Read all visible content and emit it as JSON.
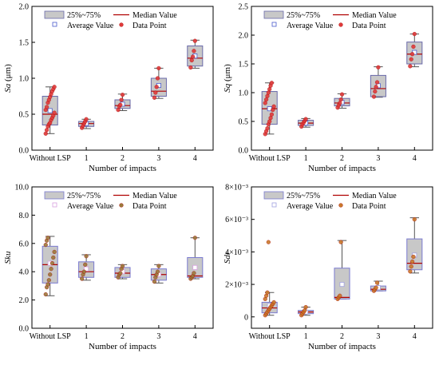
{
  "chart_data": [
    {
      "type": "box",
      "ylabel_symbol": "Sa",
      "ylabel_unit": " (μm)",
      "xlabel": "Number of impacts",
      "categories": [
        "Without LSP",
        "1",
        "2",
        "3",
        "4"
      ],
      "ylim": [
        0,
        2.0
      ],
      "yticks": [
        0.0,
        0.5,
        1.0,
        1.5,
        2.0
      ],
      "yticklabels": [
        "0.0",
        "0.5",
        "1.0",
        "1.5",
        "2.0"
      ],
      "box_color": "#c8c8c8",
      "box_edge_color": "#6a6aaa",
      "point_color": "#e03a3a",
      "average_color": "#4a5acc",
      "legend": {
        "placement": "top",
        "box_label": "25%~75%",
        "median_label": "Median Value",
        "average_label": "Average Value",
        "point_label": "Data Point"
      },
      "boxes": [
        {
          "q1": 0.35,
          "median": 0.5,
          "q3": 0.75,
          "whisker_low": 0.23,
          "whisker_high": 0.88,
          "mean": 0.55,
          "points": [
            0.23,
            0.28,
            0.33,
            0.36,
            0.38,
            0.42,
            0.45,
            0.48,
            0.52,
            0.56,
            0.6,
            0.66,
            0.7,
            0.74,
            0.78,
            0.82,
            0.85,
            0.88
          ]
        },
        {
          "q1": 0.33,
          "median": 0.37,
          "q3": 0.4,
          "whisker_low": 0.3,
          "whisker_high": 0.43,
          "mean": 0.37,
          "points": [
            0.31,
            0.34,
            0.37,
            0.4,
            0.43
          ]
        },
        {
          "q1": 0.58,
          "median": 0.62,
          "q3": 0.7,
          "whisker_low": 0.55,
          "whisker_high": 0.78,
          "mean": 0.64,
          "points": [
            0.56,
            0.61,
            0.63,
            0.7,
            0.77
          ]
        },
        {
          "q1": 0.75,
          "median": 0.82,
          "q3": 1.0,
          "whisker_low": 0.72,
          "whisker_high": 1.14,
          "mean": 0.9,
          "points": [
            0.73,
            0.8,
            0.88,
            1.0,
            1.14
          ]
        },
        {
          "q1": 1.17,
          "median": 1.28,
          "q3": 1.45,
          "whisker_low": 1.14,
          "whisker_high": 1.53,
          "mean": 1.31,
          "points": [
            1.15,
            1.25,
            1.3,
            1.38,
            1.52
          ]
        }
      ]
    },
    {
      "type": "box",
      "ylabel_symbol": "Sq",
      "ylabel_unit": " (μm)",
      "xlabel": "Number of impacts",
      "categories": [
        "Without LSP",
        "1",
        "2",
        "3",
        "4"
      ],
      "ylim": [
        0,
        2.5
      ],
      "yticks": [
        0.0,
        0.5,
        1.0,
        1.5,
        2.0,
        2.5
      ],
      "yticklabels": [
        "0.0",
        "0.5",
        "1.0",
        "1.5",
        "2.0",
        "2.5"
      ],
      "box_color": "#c8c8c8",
      "box_edge_color": "#6a6aaa",
      "point_color": "#e03a3a",
      "average_color": "#4a5acc",
      "legend": {
        "placement": "top",
        "box_label": "25%~75%",
        "median_label": "Median Value",
        "average_label": "Average Value",
        "point_label": "Data Point"
      },
      "boxes": [
        {
          "q1": 0.45,
          "median": 0.72,
          "q3": 1.02,
          "whisker_low": 0.28,
          "whisker_high": 1.17,
          "mean": 0.72,
          "points": [
            0.28,
            0.33,
            0.38,
            0.45,
            0.5,
            0.56,
            0.62,
            0.7,
            0.76,
            0.82,
            0.88,
            0.94,
            1.0,
            1.06,
            1.12,
            1.17
          ]
        },
        {
          "q1": 0.43,
          "median": 0.47,
          "q3": 0.52,
          "whisker_low": 0.4,
          "whisker_high": 0.55,
          "mean": 0.47,
          "points": [
            0.41,
            0.45,
            0.48,
            0.51,
            0.54
          ]
        },
        {
          "q1": 0.77,
          "median": 0.82,
          "q3": 0.9,
          "whisker_low": 0.73,
          "whisker_high": 0.98,
          "mean": 0.83,
          "points": [
            0.74,
            0.78,
            0.82,
            0.88,
            0.97
          ]
        },
        {
          "q1": 0.93,
          "median": 1.07,
          "q3": 1.3,
          "whisker_low": 0.92,
          "whisker_high": 1.45,
          "mean": 1.12,
          "points": [
            0.93,
            1.02,
            1.1,
            1.18,
            1.44
          ]
        },
        {
          "q1": 1.5,
          "median": 1.67,
          "q3": 1.88,
          "whisker_low": 1.45,
          "whisker_high": 2.02,
          "mean": 1.7,
          "points": [
            1.46,
            1.58,
            1.67,
            1.8,
            2.02
          ]
        }
      ]
    },
    {
      "type": "box",
      "ylabel_symbol": "Sku",
      "ylabel_unit": "",
      "xlabel": "Number of impacts",
      "categories": [
        "Without LSP",
        "1",
        "2",
        "3",
        "4"
      ],
      "ylim": [
        0,
        10.0
      ],
      "yticks": [
        0,
        2,
        4,
        6,
        8,
        10
      ],
      "yticklabels": [
        "0.0",
        "2.0",
        "4.0",
        "6.0",
        "8.0",
        "10.0"
      ],
      "box_color": "#c8c8c8",
      "box_edge_color": "#7a7ad0",
      "point_color": "#9a7a3a",
      "average_color": "#d8a0e0",
      "legend": {
        "placement": "top",
        "box_label": "25%~75%",
        "median_label": "Median Value",
        "average_label": "Average Value",
        "point_label": "Data Point"
      },
      "boxes": [
        {
          "q1": 3.2,
          "median": 4.5,
          "q3": 5.8,
          "whisker_low": 2.3,
          "whisker_high": 6.5,
          "mean": 4.6,
          "points": [
            2.4,
            2.9,
            3.1,
            3.4,
            3.8,
            4.2,
            4.6,
            5.0,
            5.4,
            5.9,
            6.2,
            6.4
          ]
        },
        {
          "q1": 3.6,
          "median": 4.0,
          "q3": 4.7,
          "whisker_low": 3.4,
          "whisker_high": 5.2,
          "mean": 4.2,
          "points": [
            3.5,
            3.8,
            4.0,
            4.5,
            5.1
          ]
        },
        {
          "q1": 3.6,
          "median": 3.9,
          "q3": 4.3,
          "whisker_low": 3.5,
          "whisker_high": 4.5,
          "mean": 4.0,
          "points": [
            3.6,
            3.8,
            3.9,
            4.2,
            4.4
          ]
        },
        {
          "q1": 3.4,
          "median": 3.8,
          "q3": 4.2,
          "whisker_low": 3.2,
          "whisker_high": 4.5,
          "mean": 3.8,
          "points": [
            3.3,
            3.6,
            3.8,
            4.0,
            4.4
          ]
        },
        {
          "q1": 3.6,
          "median": 3.7,
          "q3": 5.0,
          "whisker_low": 3.5,
          "whisker_high": 6.4,
          "mean": 4.3,
          "points": [
            3.5,
            3.6,
            3.7,
            3.9,
            6.4
          ]
        }
      ]
    },
    {
      "type": "box",
      "ylabel_symbol": "Sdr",
      "ylabel_unit": "",
      "xlabel": "Number of impacts",
      "categories": [
        "Without LSP",
        "1",
        "2",
        "3",
        "4"
      ],
      "ylim": [
        -0.0007,
        0.008
      ],
      "yticks": [
        0,
        0.002,
        0.004,
        0.006,
        0.008
      ],
      "yticklabels": [
        "0",
        "2×10⁻³",
        "4×10⁻³",
        "6×10⁻³",
        "8×10⁻³"
      ],
      "box_color": "#c8c8c8",
      "box_edge_color": "#7a7ad0",
      "point_color": "#c87a2a",
      "average_color": "#a0a0e0",
      "legend": {
        "placement": "top",
        "box_label": "25%~75%",
        "median_label": "Median Value",
        "average_label": "Average Value",
        "point_label": "Data Point"
      },
      "boxes": [
        {
          "q1": 0.00025,
          "median": 0.00055,
          "q3": 0.0009,
          "whisker_low": 0.0001,
          "whisker_high": 0.0015,
          "mean": 0.0007,
          "points": [
            0.0001,
            0.0002,
            0.0003,
            0.0004,
            0.0005,
            0.0006,
            0.0007,
            0.0008,
            0.0009,
            0.0011,
            0.0013,
            0.0015,
            0.0046
          ]
        },
        {
          "q1": 0.0002,
          "median": 0.0003,
          "q3": 0.0004,
          "whisker_low": 0.0001,
          "whisker_high": 0.0006,
          "mean": 0.0003,
          "points": [
            0.0001,
            0.0002,
            0.0003,
            0.0004,
            0.0006
          ]
        },
        {
          "q1": 0.0011,
          "median": 0.0012,
          "q3": 0.003,
          "whisker_low": 0.0011,
          "whisker_high": 0.0047,
          "mean": 0.002,
          "points": [
            0.0011,
            0.0012,
            0.0013,
            0.0046
          ]
        },
        {
          "q1": 0.0016,
          "median": 0.0017,
          "q3": 0.0019,
          "whisker_low": 0.0016,
          "whisker_high": 0.0022,
          "mean": 0.0018,
          "points": [
            0.0016,
            0.0017,
            0.0018,
            0.0021
          ]
        },
        {
          "q1": 0.0029,
          "median": 0.0033,
          "q3": 0.0048,
          "whisker_low": 0.0027,
          "whisker_high": 0.0061,
          "mean": 0.0038,
          "points": [
            0.0028,
            0.0031,
            0.0034,
            0.0037,
            0.006
          ]
        }
      ]
    }
  ]
}
